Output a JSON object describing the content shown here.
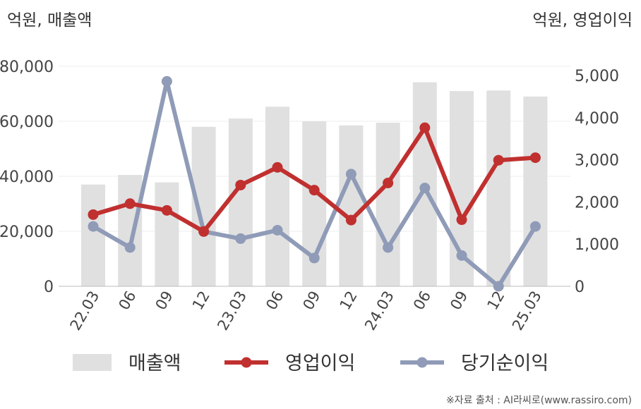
{
  "chart_data": {
    "type": "bar+line",
    "left_axis_unit": "억원, 매출액",
    "right_axis_unit": "억원, 영업이익",
    "categories": [
      "22.03",
      "06",
      "09",
      "12",
      "23.03",
      "06",
      "09",
      "12",
      "24.03",
      "06",
      "09",
      "12",
      "25.03"
    ],
    "series": [
      {
        "name": "매출액",
        "type": "bar",
        "axis": "left",
        "color": "#e0e0e0",
        "values": [
          37000,
          40500,
          37800,
          58000,
          61000,
          65300,
          60000,
          58500,
          59500,
          74200,
          71000,
          71200,
          69000
        ]
      },
      {
        "name": "영업이익",
        "type": "line",
        "axis": "right",
        "color": "#c0302f",
        "values": [
          1700,
          1960,
          1800,
          1300,
          2400,
          2820,
          2280,
          1570,
          2450,
          3760,
          1580,
          2990,
          3050
        ]
      },
      {
        "name": "당기순이익",
        "type": "line",
        "axis": "right",
        "color": "#8f9bb7",
        "values": [
          1420,
          920,
          4860,
          1300,
          1130,
          1330,
          670,
          2660,
          920,
          2330,
          730,
          0,
          1420
        ]
      }
    ],
    "left_ticks": [
      "0",
      "20,000",
      "40,000",
      "60,000",
      "80,000"
    ],
    "right_ticks": [
      "0",
      "1,000",
      "2,000",
      "3,000",
      "4,000",
      "5,000"
    ],
    "left_ylim": [
      0,
      80000
    ],
    "right_ylim": [
      0,
      5000
    ],
    "grid": true,
    "legend_position": "bottom"
  },
  "source": "※자료 출처 : AI라씨로(www.rassiro.com)"
}
